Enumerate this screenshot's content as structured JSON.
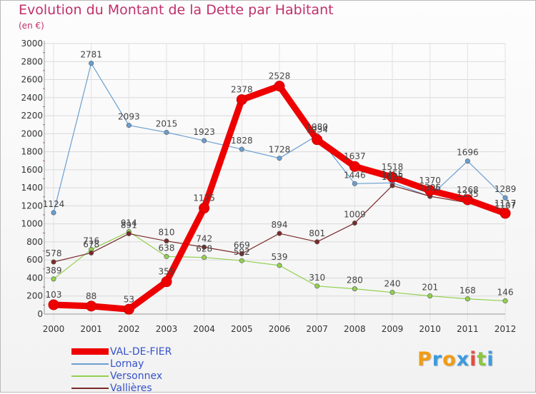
{
  "title": "Evolution du Montant de la Dette par Habitant",
  "subtitle": "(en €)",
  "logo": {
    "text": "Proxiti",
    "letters": [
      {
        "ch": "P",
        "color": "#f39c12"
      },
      {
        "ch": "r",
        "color": "#3b9be0"
      },
      {
        "ch": "o",
        "color": "#f39c12"
      },
      {
        "ch": "x",
        "color": "#3b9be0"
      },
      {
        "ch": "i",
        "color": "#e74c3c"
      },
      {
        "ch": "t",
        "color": "#8cc63f"
      },
      {
        "ch": "i",
        "color": "#3b9be0"
      }
    ]
  },
  "chart_data": {
    "type": "line",
    "title": "Evolution du Montant de la Dette par Habitant",
    "subtitle": "(en €)",
    "xlabel": "",
    "ylabel": "",
    "x": [
      "2000",
      "2001",
      "2002",
      "2003",
      "2004",
      "2005",
      "2006",
      "2007",
      "2008",
      "2009",
      "2010",
      "2011",
      "2012"
    ],
    "yticks": [
      "0",
      "200",
      "400",
      "600",
      "800",
      "1000",
      "1200",
      "1400",
      "1600",
      "1800",
      "2000",
      "2200",
      "2400",
      "2600",
      "2800",
      "3000"
    ],
    "ylim": [
      0,
      3000
    ],
    "grid": "y",
    "legend_position": "bottom-left",
    "series": [
      {
        "name": "VAL-DE-FIER",
        "color": "#ee0000",
        "values": [
          103,
          88,
          53,
          359,
          1175,
          2378,
          2528,
          1934,
          1637,
          1518,
          1370,
          1268,
          1117
        ]
      },
      {
        "name": "Lornay",
        "color": "#6a9fd1",
        "values": [
          1124,
          2781,
          2093,
          2015,
          1923,
          1828,
          1728,
          1980,
          1446,
          1455,
          1305,
          1696,
          1289
        ]
      },
      {
        "name": "Versonnex",
        "color": "#92d050",
        "values": [
          389,
          716,
          914,
          638,
          628,
          592,
          539,
          310,
          280,
          240,
          201,
          168,
          146
        ]
      },
      {
        "name": "Vallières",
        "color": "#7b2a2a",
        "values": [
          578,
          678,
          891,
          810,
          742,
          669,
          894,
          801,
          1009,
          1425,
          1306,
          1235,
          1107
        ]
      }
    ],
    "data_labels": [
      [
        "103",
        "88",
        "53",
        "359",
        "1175",
        "2378",
        "2528",
        "1934",
        "1637",
        "1518",
        "1370",
        "1268",
        "1117"
      ],
      [
        "1124",
        "2781",
        "2093",
        "2015",
        "1923",
        "1828",
        "1728",
        "1980",
        "1446",
        "1455",
        "1305",
        "1696",
        "1289"
      ],
      [
        "389",
        "716",
        "914",
        "638",
        "628",
        "592",
        "539",
        "310",
        "280",
        "240",
        "201",
        "168",
        "146"
      ],
      [
        "578",
        "678",
        "891",
        "810",
        "742",
        "669",
        "894",
        "801",
        "1009",
        "1425",
        "1306",
        "1235",
        "1107"
      ]
    ]
  }
}
